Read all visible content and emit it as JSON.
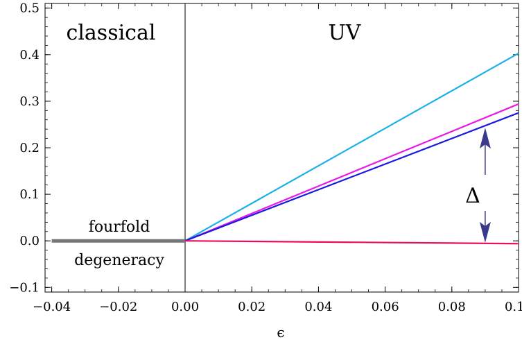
{
  "chart_data": {
    "type": "line",
    "xlabel": "ϵ",
    "ylabel": "",
    "xlim": [
      -0.042,
      0.1
    ],
    "ylim": [
      -0.11,
      0.51
    ],
    "xticks": [
      -0.04,
      -0.02,
      0.0,
      0.02,
      0.04,
      0.06,
      0.08,
      0.1
    ],
    "xtick_labels": [
      "−0.04",
      "−0.02",
      "0.00",
      "0.02",
      "0.04",
      "0.06",
      "0.08",
      "0.10"
    ],
    "yticks": [
      -0.1,
      0.0,
      0.1,
      0.2,
      0.3,
      0.4,
      0.5
    ],
    "ytick_labels": [
      "−0.1",
      "0.0",
      "0.1",
      "0.2",
      "0.3",
      "0.4",
      "0.5"
    ],
    "grid": false,
    "series": [
      {
        "color": "#777777",
        "x": [
          -0.04,
          0.0
        ],
        "y": [
          0.0,
          0.0
        ]
      },
      {
        "color": "#1ab0e8",
        "x": [
          0.0,
          0.1
        ],
        "y": [
          0.0,
          0.403
        ]
      },
      {
        "color": "#e81ae8",
        "x": [
          0.0,
          0.1
        ],
        "y": [
          0.0,
          0.294
        ]
      },
      {
        "color": "#1a1ae0",
        "x": [
          0.0,
          0.1
        ],
        "y": [
          0.0,
          0.275
        ]
      },
      {
        "color": "#e8105a",
        "x": [
          0.0,
          0.1
        ],
        "y": [
          0.0,
          -0.006
        ]
      }
    ],
    "vline_x": 0.0,
    "annotations": {
      "region_left": "classical",
      "region_right": "UV",
      "degeneracy_line1": "fourfold",
      "degeneracy_line2": "degeneracy",
      "gap_label": "Δ",
      "gap_x": 0.09,
      "gap_arrow_color": "#3a3a8c"
    }
  }
}
